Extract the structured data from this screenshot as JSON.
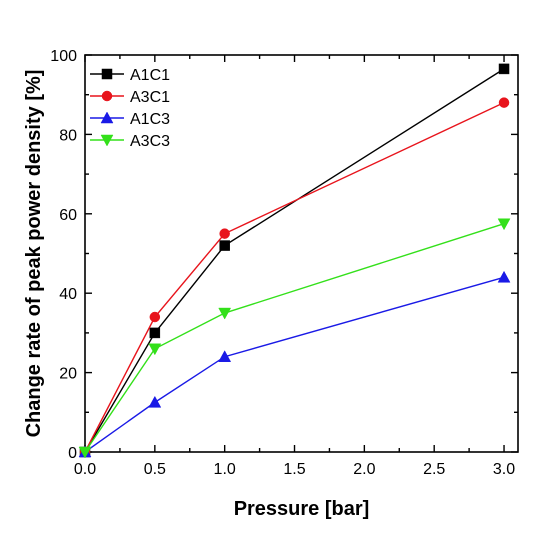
{
  "chart_data": {
    "type": "line",
    "title": "",
    "xlabel": "Pressure [bar]",
    "ylabel": "Change rate of peak power density [%]",
    "xlim": [
      0.0,
      3.1
    ],
    "ylim": [
      0,
      100
    ],
    "x_ticks": [
      "0.0",
      "0.5",
      "1.0",
      "1.5",
      "2.0",
      "2.5",
      "3.0"
    ],
    "y_ticks": [
      "0",
      "20",
      "40",
      "60",
      "80",
      "100"
    ],
    "grid": false,
    "legend_position": "top-left",
    "series": [
      {
        "name": "A1C1",
        "color": "#000000",
        "marker": "square",
        "x": [
          0.0,
          0.5,
          1.0,
          3.0
        ],
        "y": [
          0,
          30,
          52,
          96.5
        ]
      },
      {
        "name": "A3C1",
        "color": "#e8141c",
        "marker": "circle",
        "x": [
          0.0,
          0.5,
          1.0,
          3.0
        ],
        "y": [
          0,
          34,
          55,
          88
        ]
      },
      {
        "name": "A1C3",
        "color": "#1a1ae6",
        "marker": "triangle-up",
        "x": [
          0.0,
          0.5,
          1.0,
          3.0
        ],
        "y": [
          0,
          12.5,
          24,
          44
        ]
      },
      {
        "name": "A3C3",
        "color": "#33e01a",
        "marker": "triangle-down",
        "x": [
          0.0,
          0.5,
          1.0,
          3.0
        ],
        "y": [
          0,
          26,
          35,
          57.5
        ]
      }
    ]
  }
}
